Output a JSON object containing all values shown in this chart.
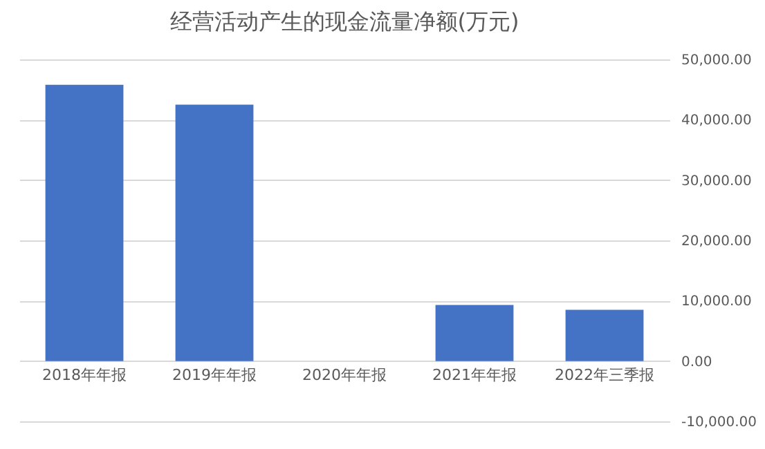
{
  "chart_data": {
    "type": "bar",
    "title": "经营活动产生的现金流量净额(万元)",
    "categories": [
      "2018年年报",
      "2019年年报",
      "2020年年报",
      "2021年年报",
      "2022年三季报"
    ],
    "values": [
      45800,
      42500,
      null,
      9300,
      8500
    ],
    "color": "#4472c4",
    "ylim": [
      -10000,
      50000
    ],
    "yticks": [
      {
        "value": -10000,
        "label": "-10,000.00"
      },
      {
        "value": 0,
        "label": "0.00"
      },
      {
        "value": 10000,
        "label": "10,000.00"
      },
      {
        "value": 20000,
        "label": "20,000.00"
      },
      {
        "value": 30000,
        "label": "30,000.00"
      },
      {
        "value": 40000,
        "label": "40,000.00"
      },
      {
        "value": 50000,
        "label": "50,000.00"
      }
    ],
    "grid": "y"
  }
}
